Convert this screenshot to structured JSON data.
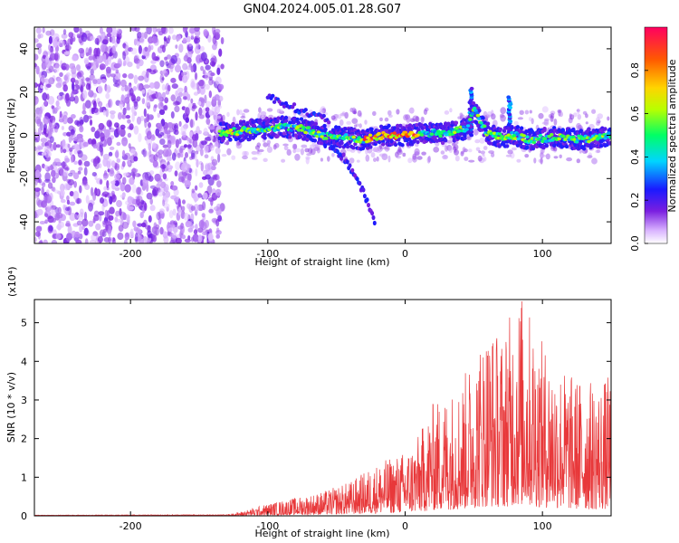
{
  "title": "GN04.2024.005.01.28.G07",
  "chart_data": [
    {
      "type": "heatmap",
      "xlabel": "Height of straight line (km)",
      "ylabel": "Frequency (Hz)",
      "xlim": [
        -270,
        150
      ],
      "ylim": [
        -50,
        50
      ],
      "xticks": [
        -200,
        -100,
        0,
        100
      ],
      "yticks": [
        -40,
        -20,
        0,
        20,
        40
      ],
      "colorbar": {
        "label": "Normalized spectral amplitude",
        "range": [
          0,
          1
        ],
        "ticks": [
          "0.0",
          "0.2",
          "0.4",
          "0.6",
          "0.8"
        ]
      },
      "features": {
        "noise_region_x": [
          -270,
          -133
        ],
        "main_ridge": [
          {
            "x": -135,
            "y": 1
          },
          {
            "x": -120,
            "y": 2
          },
          {
            "x": -105,
            "y": 3
          },
          {
            "x": -90,
            "y": 4
          },
          {
            "x": -75,
            "y": 3
          },
          {
            "x": -60,
            "y": 0
          },
          {
            "x": -45,
            "y": -1
          },
          {
            "x": -30,
            "y": -2
          },
          {
            "x": -15,
            "y": 0
          },
          {
            "x": 0,
            "y": 0
          },
          {
            "x": 15,
            "y": 1
          },
          {
            "x": 30,
            "y": 1
          },
          {
            "x": 45,
            "y": 3
          },
          {
            "x": 50,
            "y": 12
          },
          {
            "x": 55,
            "y": 6
          },
          {
            "x": 60,
            "y": 1
          },
          {
            "x": 70,
            "y": -1
          },
          {
            "x": 80,
            "y": 0
          },
          {
            "x": 90,
            "y": -2
          },
          {
            "x": 110,
            "y": -1
          },
          {
            "x": 130,
            "y": -2
          },
          {
            "x": 150,
            "y": 0
          }
        ],
        "descending_branch": [
          {
            "x": -60,
            "y": -3
          },
          {
            "x": -45,
            "y": -10
          },
          {
            "x": -35,
            "y": -20
          },
          {
            "x": -28,
            "y": -30
          },
          {
            "x": -22,
            "y": -40
          }
        ],
        "upper_branch": [
          {
            "x": -100,
            "y": 18
          },
          {
            "x": -85,
            "y": 14
          },
          {
            "x": -70,
            "y": 10
          },
          {
            "x": -55,
            "y": 7
          }
        ],
        "spikes": [
          {
            "x": 48,
            "y_max": 22
          },
          {
            "x": 76,
            "y_max": 18
          }
        ]
      }
    },
    {
      "type": "line",
      "xlabel": "Height of straight line (km)",
      "ylabel": "SNR (10 * v/v)",
      "y_multiplier": "(x10⁴)",
      "xlim": [
        -270,
        150
      ],
      "ylim": [
        0,
        5.6
      ],
      "xticks": [
        -200,
        -100,
        0,
        100
      ],
      "yticks": [
        0,
        1,
        2,
        3,
        4,
        5
      ],
      "series_color": "#e8383a",
      "envelope": [
        {
          "x": -270,
          "y": 0.02
        },
        {
          "x": -130,
          "y": 0.03
        },
        {
          "x": -120,
          "y": 0.1
        },
        {
          "x": -100,
          "y": 0.3
        },
        {
          "x": -80,
          "y": 0.45
        },
        {
          "x": -60,
          "y": 0.6
        },
        {
          "x": -40,
          "y": 0.85
        },
        {
          "x": -20,
          "y": 1.3
        },
        {
          "x": 0,
          "y": 1.6
        },
        {
          "x": 10,
          "y": 2.0
        },
        {
          "x": 20,
          "y": 2.8
        },
        {
          "x": 40,
          "y": 3.3
        },
        {
          "x": 50,
          "y": 4.0
        },
        {
          "x": 60,
          "y": 4.8
        },
        {
          "x": 70,
          "y": 4.5
        },
        {
          "x": 84,
          "y": 5.6
        },
        {
          "x": 100,
          "y": 4.3
        },
        {
          "x": 120,
          "y": 3.5
        },
        {
          "x": 140,
          "y": 3.3
        },
        {
          "x": 150,
          "y": 3.5
        }
      ]
    }
  ]
}
